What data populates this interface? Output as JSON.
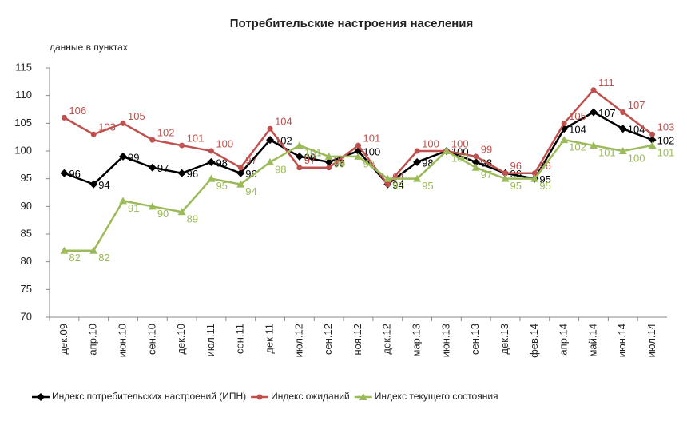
{
  "chart_data": {
    "type": "line",
    "title": "Потребительские настроения населения",
    "subtitle": "данные в пунктах",
    "categories": [
      "дек.09",
      "апр.10",
      "июн.10",
      "сен.10",
      "дек.10",
      "июл.11",
      "сен.11",
      "дек.11",
      "июл.12",
      "сен.12",
      "ноя.12",
      "дек.12",
      "мар.13",
      "июн.13",
      "сен.13",
      "дек.13",
      "фев.14",
      "апр.14",
      "май.14",
      "июн.14",
      "июл.14"
    ],
    "series": [
      {
        "name": "Индекс потребительских настроений (ИПН)",
        "color": "#000000",
        "marker": "diamond",
        "values": [
          96,
          94,
          99,
          97,
          96,
          98,
          96,
          102,
          99,
          98,
          100,
          94,
          98,
          100,
          98,
          96,
          95,
          104,
          107,
          104,
          102
        ]
      },
      {
        "name": "Индекс ожиданий",
        "color": "#c0504d",
        "marker": "circle",
        "values": [
          106,
          103,
          105,
          102,
          101,
          100,
          97,
          104,
          97,
          97,
          101,
          94,
          100,
          100,
          99,
          96,
          96,
          105,
          111,
          107,
          103
        ]
      },
      {
        "name": "Индекс текущего состояния",
        "color": "#9bbb59",
        "marker": "triangle",
        "values": [
          82,
          82,
          91,
          90,
          89,
          95,
          94,
          98,
          101,
          99,
          99,
          95,
          95,
          100,
          97,
          95,
          95,
          102,
          101,
          100,
          101
        ]
      }
    ],
    "ylim": [
      70,
      115
    ],
    "yticks": [
      70,
      75,
      80,
      85,
      90,
      95,
      100,
      105,
      110,
      115
    ],
    "grid": false,
    "legend": "bottom"
  }
}
